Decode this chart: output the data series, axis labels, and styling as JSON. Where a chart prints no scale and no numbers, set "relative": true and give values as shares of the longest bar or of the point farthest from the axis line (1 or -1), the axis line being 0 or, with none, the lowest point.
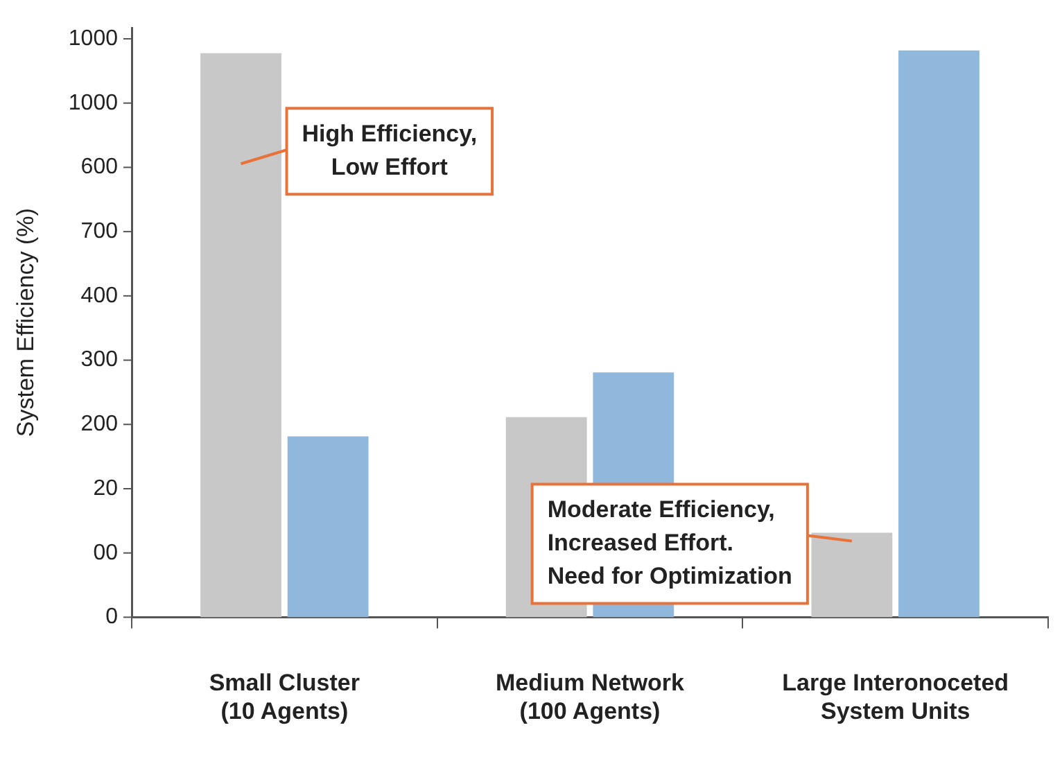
{
  "chart_data": {
    "type": "bar",
    "ylabel": "System Efficiency (%)",
    "relative": true,
    "categories": [
      "Small Cluster\n(10 Agents)",
      "Medium Network\n(100 Agents)",
      "Large Interonoceted\nSystem Units"
    ],
    "series": [
      {
        "color": "#c8c8c8",
        "values": [
          0.995,
          0.353,
          0.149
        ]
      },
      {
        "color": "#8fb8dc",
        "values": [
          0.319,
          0.432,
          1
        ]
      }
    ],
    "legend": false,
    "annotations": [
      {
        "text": "High Efficiency,\nLow Effort",
        "x": "Small Cluster\n(10 Agents)",
        "y": 0.8
      },
      "Moderate Efficiency,\nIncreased Effort.\nNeed for Optimization",
      "1000",
      "1000",
      "600",
      "700",
      "400",
      "300",
      "200",
      "20",
      "00",
      "0"
    ]
  }
}
